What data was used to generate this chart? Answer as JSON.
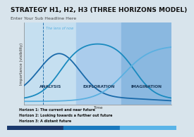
{
  "title": "STRATEGY H1, H2, H3 (THREE HORIZONS MODEL)",
  "subtitle": "Enter Your Sub Headline Here",
  "bg_color": "#d8e4ec",
  "chart_bg": "#ddeef8",
  "zone1_color": "#c5dff0",
  "zone2_color": "#aaccec",
  "zone3_color": "#8ab8e0",
  "h1_label": "ANALYSIS",
  "h2_label": "EXPLORATION",
  "h3_label": "IMAGINATION",
  "lens_label": "The lens of now",
  "xlabel": "Time",
  "ylabel": "Importance (visibility)",
  "legend1": "Horizon 1: The current and near future",
  "legend2": "Horizon 2: Looking towards a further out future",
  "legend3": "Horizon 3: A distant future",
  "line_color1": "#1a6aaa",
  "line_color2": "#1a8abf",
  "line_color3": "#5ab0e0",
  "dashed_color": "#1a6aaa",
  "bottom_bar_colors": [
    "#1a3a6e",
    "#1a7abf",
    "#5ab4e8"
  ],
  "title_fontsize": 6.5,
  "subtitle_fontsize": 4.5
}
